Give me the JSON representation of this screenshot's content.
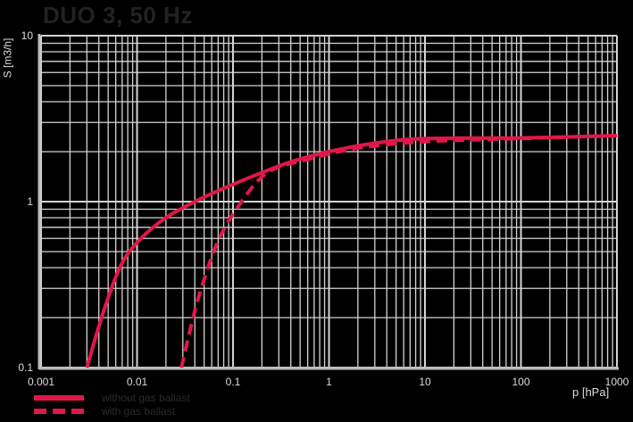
{
  "title": "DUO 3, 50 Hz",
  "chart_data": {
    "type": "line",
    "title": "DUO 3, 50 Hz",
    "xlabel": "p [hPa]",
    "ylabel": "S [m3/h]",
    "xscale": "log",
    "yscale": "log",
    "xlim": [
      0.001,
      1000
    ],
    "ylim": [
      0.1,
      10
    ],
    "xticks": [
      "0.001",
      "0.01",
      "0.1",
      "1",
      "10",
      "100",
      "1000"
    ],
    "yticks": [
      "0.1",
      "1",
      "10"
    ],
    "grid": true,
    "legend_position": "bottom-left",
    "series": [
      {
        "name": "without gas ballast",
        "style": "solid",
        "color": "#e0174a",
        "x": [
          0.003,
          0.0045,
          0.0069,
          0.011,
          0.02,
          0.04,
          0.1,
          0.36,
          1,
          3,
          10,
          100,
          1000
        ],
        "y": [
          0.1,
          0.22,
          0.42,
          0.6,
          0.8,
          1.0,
          1.27,
          1.7,
          2.0,
          2.25,
          2.4,
          2.42,
          2.5
        ]
      },
      {
        "name": "with gas ballast",
        "style": "dashed",
        "color": "#e0174a",
        "x": [
          0.029,
          0.035,
          0.045,
          0.07,
          0.12,
          0.23,
          0.61,
          2,
          10,
          100,
          1000
        ],
        "y": [
          0.1,
          0.16,
          0.28,
          0.58,
          0.98,
          1.5,
          1.8,
          2.1,
          2.3,
          2.4,
          2.5
        ]
      }
    ]
  },
  "legend": [
    {
      "label": "without gas ballast",
      "style": "solid"
    },
    {
      "label": "with gas ballast",
      "style": "dashed"
    }
  ],
  "colors": {
    "curve": "#e0174a",
    "grid": "#d4d4d4",
    "background": "#000000"
  }
}
